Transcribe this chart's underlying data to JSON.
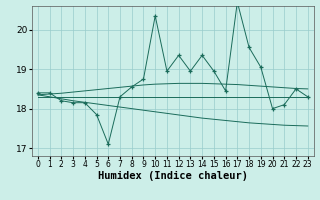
{
  "xlabel": "Humidex (Indice chaleur)",
  "x": [
    0,
    1,
    2,
    3,
    4,
    5,
    6,
    7,
    8,
    9,
    10,
    11,
    12,
    13,
    14,
    15,
    16,
    17,
    18,
    19,
    20,
    21,
    22,
    23
  ],
  "y_main": [
    18.4,
    18.4,
    18.2,
    18.15,
    18.15,
    17.85,
    17.1,
    18.3,
    18.55,
    18.75,
    20.35,
    18.95,
    19.35,
    18.95,
    19.35,
    18.95,
    18.45,
    20.7,
    19.55,
    19.05,
    18.0,
    18.1,
    18.5,
    18.3
  ],
  "y_flat": [
    18.3,
    18.3,
    18.3,
    18.3,
    18.3,
    18.3,
    18.3,
    18.3,
    18.3,
    18.3,
    18.3,
    18.3,
    18.3,
    18.3,
    18.3,
    18.3,
    18.3,
    18.3,
    18.3,
    18.3,
    18.3,
    18.3,
    18.3,
    18.3
  ],
  "y_upper_trend": [
    18.35,
    18.37,
    18.39,
    18.42,
    18.45,
    18.48,
    18.51,
    18.54,
    18.57,
    18.6,
    18.62,
    18.63,
    18.64,
    18.64,
    18.64,
    18.63,
    18.62,
    18.61,
    18.59,
    18.57,
    18.55,
    18.53,
    18.51,
    18.5
  ],
  "y_lower_trend": [
    18.35,
    18.3,
    18.25,
    18.2,
    18.16,
    18.12,
    18.08,
    18.04,
    18.0,
    17.96,
    17.92,
    17.88,
    17.84,
    17.8,
    17.76,
    17.73,
    17.7,
    17.67,
    17.64,
    17.62,
    17.6,
    17.58,
    17.57,
    17.56
  ],
  "ylim": [
    16.8,
    20.6
  ],
  "xlim": [
    -0.5,
    23.5
  ],
  "yticks": [
    17,
    18,
    19,
    20
  ],
  "xticks": [
    0,
    1,
    2,
    3,
    4,
    5,
    6,
    7,
    8,
    9,
    10,
    11,
    12,
    13,
    14,
    15,
    16,
    17,
    18,
    19,
    20,
    21,
    22,
    23
  ],
  "line_color": "#1a6b5a",
  "bg_color": "#cceee8",
  "grid_color": "#99cccc"
}
